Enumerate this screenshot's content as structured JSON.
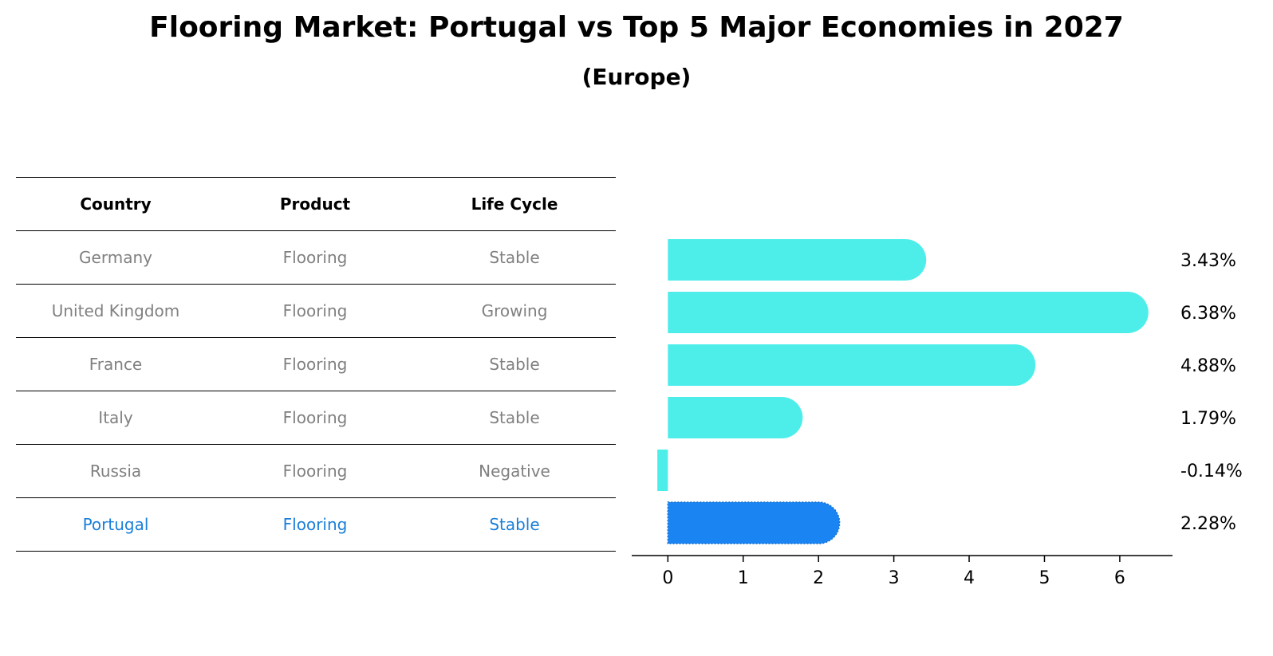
{
  "title": "Flooring Market: Portugal vs Top 5 Major Economies in 2027",
  "subtitle": "(Europe)",
  "table": {
    "headers": [
      "Country",
      "Product",
      "Life Cycle"
    ],
    "rows": [
      [
        "Germany",
        "Flooring",
        "Stable"
      ],
      [
        "United Kingdom",
        "Flooring",
        "Growing"
      ],
      [
        "France",
        "Flooring",
        "Stable"
      ],
      [
        "Italy",
        "Flooring",
        "Stable"
      ],
      [
        "Russia",
        "Flooring",
        "Negative"
      ],
      [
        "Portugal",
        "Flooring",
        "Stable"
      ]
    ],
    "highlight_row": 5
  },
  "colors": {
    "bar": "#4deeea",
    "highlight": "#1a85f2",
    "highlight_text": "#1a7fd9",
    "muted_text": "#808080"
  },
  "chart_data": {
    "type": "bar",
    "orientation": "horizontal",
    "categories": [
      "Germany",
      "United Kingdom",
      "France",
      "Italy",
      "Russia",
      "Portugal"
    ],
    "values": [
      3.43,
      6.38,
      4.88,
      1.79,
      -0.14,
      2.28
    ],
    "labels": [
      "3.43%",
      "6.38%",
      "4.88%",
      "1.79%",
      "-0.14%",
      "2.28%"
    ],
    "highlight_category": "Portugal",
    "xlim": [
      -0.48,
      6.7
    ],
    "xticks": [
      0,
      1,
      2,
      3,
      4,
      5,
      6
    ],
    "xlabel": "",
    "ylabel": "",
    "grid": false
  }
}
